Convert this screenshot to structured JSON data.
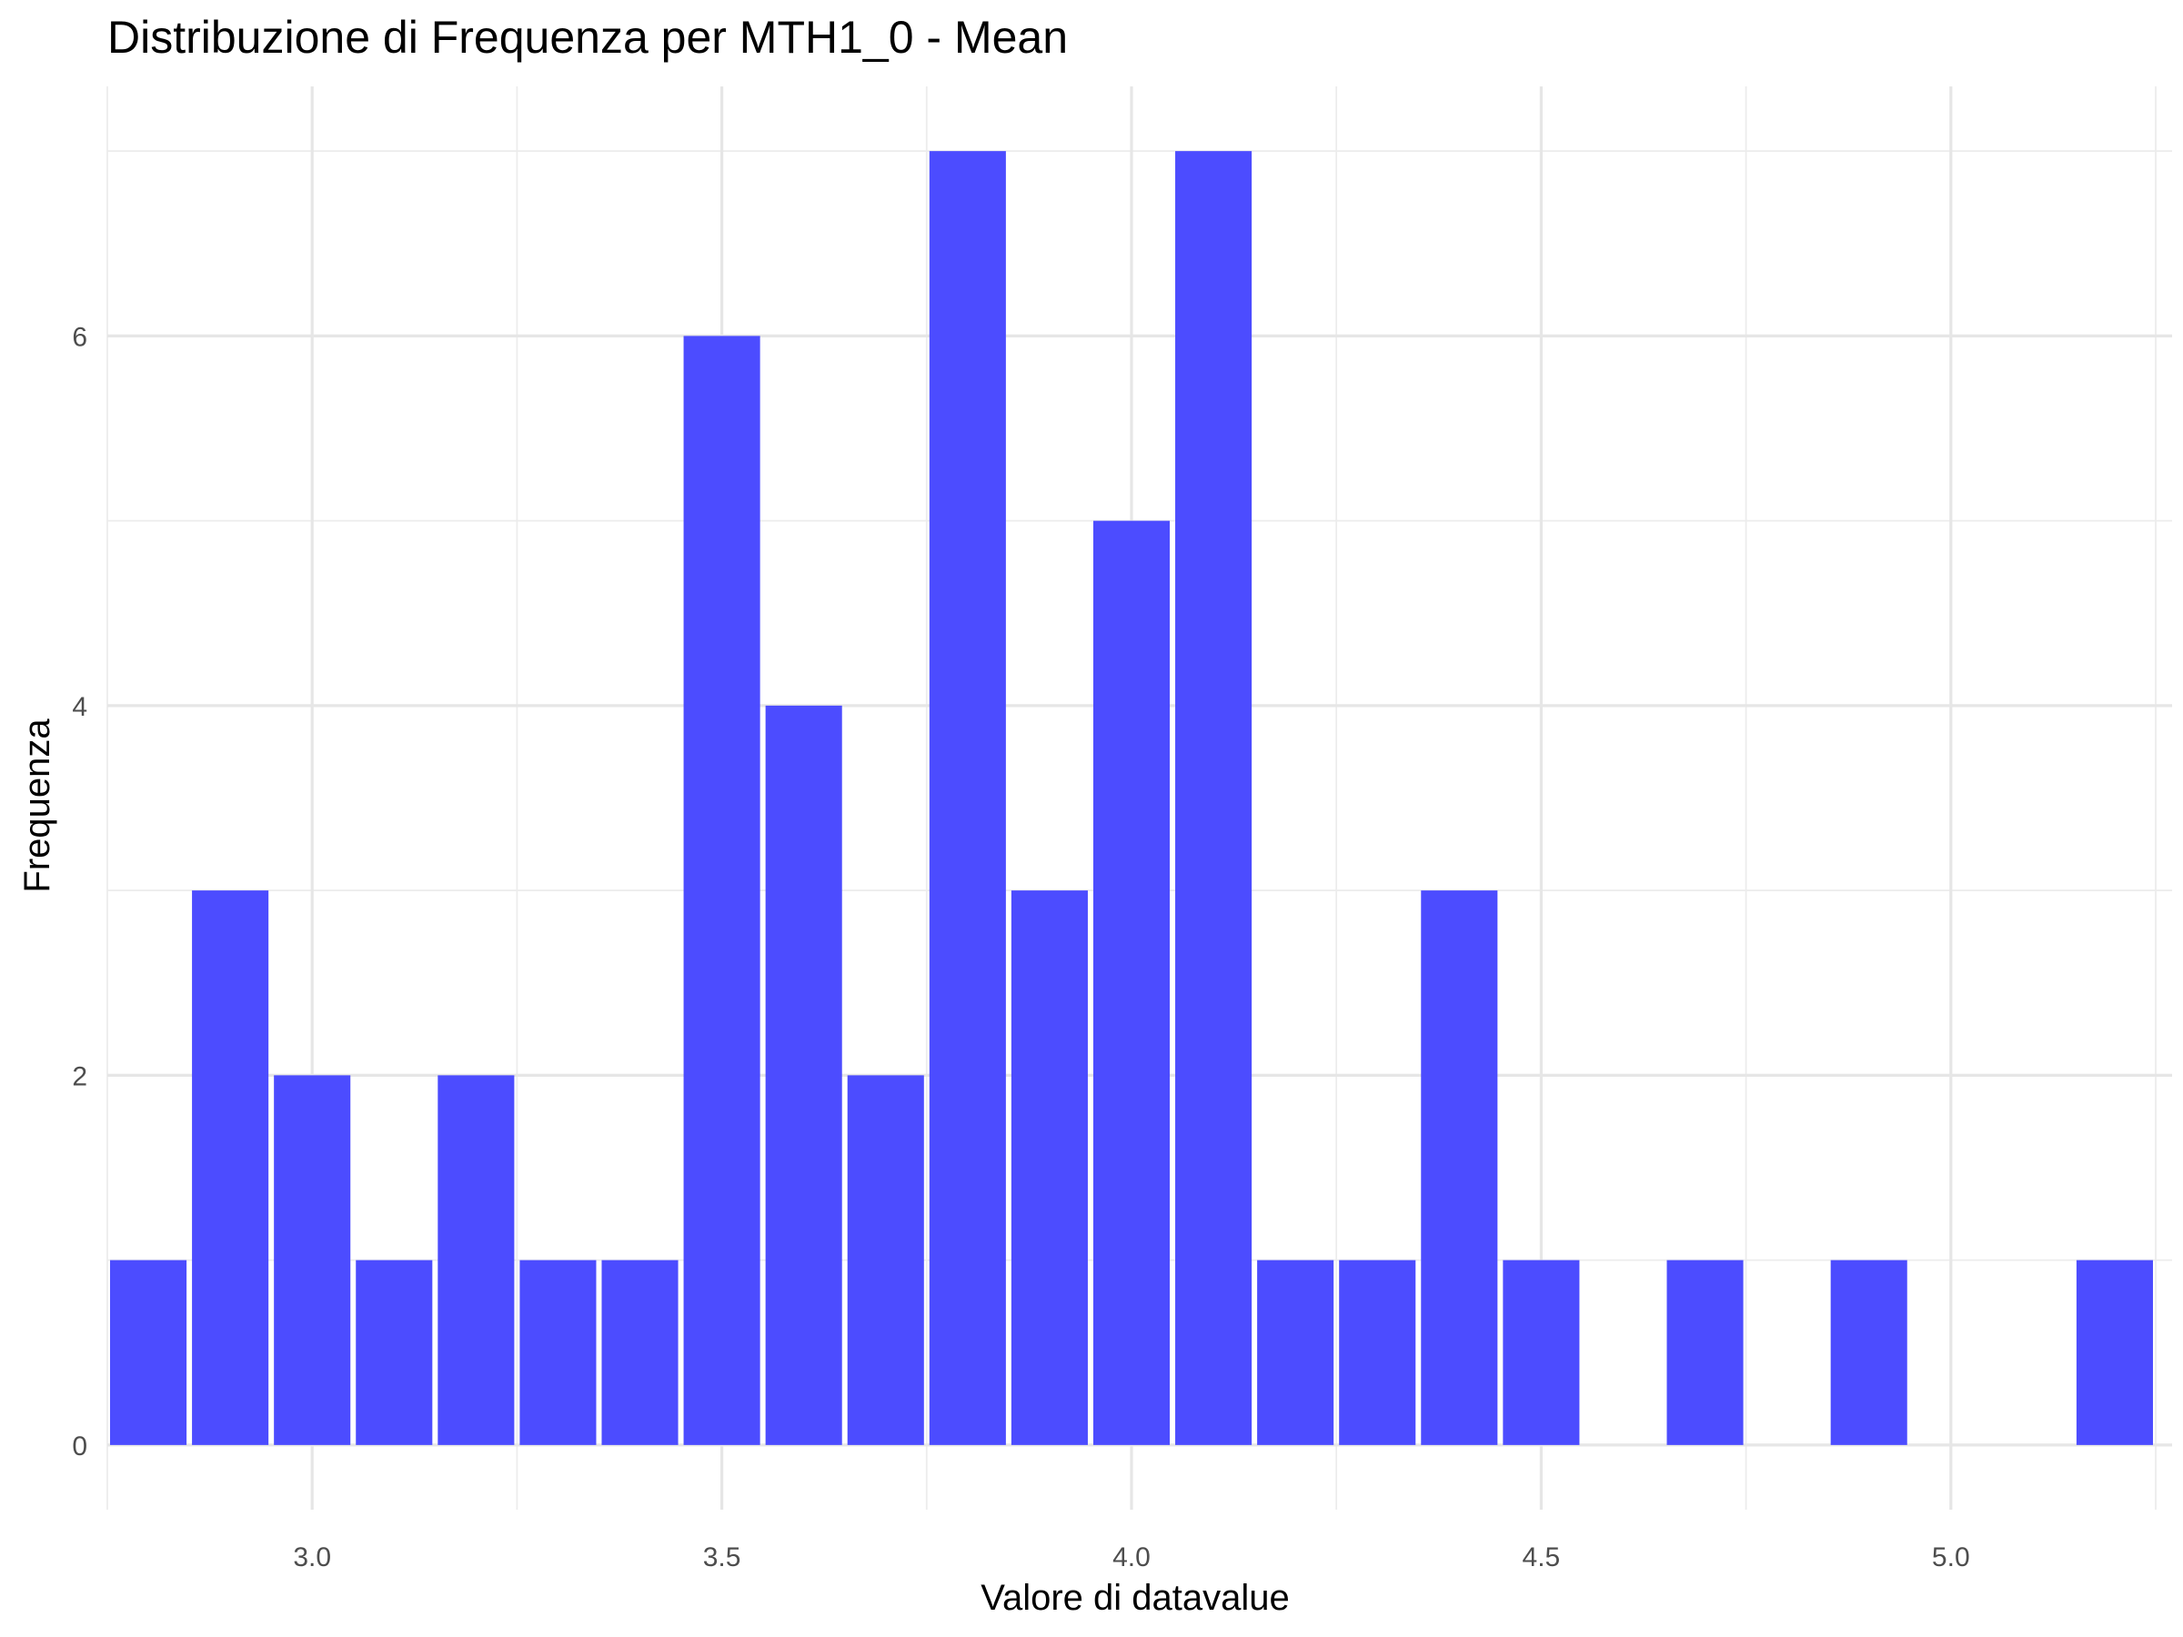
{
  "chart_data": {
    "type": "bar",
    "subtype": "histogram",
    "title": "Distribuzione di Frequenza per MTH1_0 - Mean",
    "xlabel": "Valore di datavalue",
    "ylabel": "Frequenza",
    "bin_width": 0.1,
    "bins": [
      {
        "x": 2.8,
        "count": 1
      },
      {
        "x": 2.9,
        "count": 3
      },
      {
        "x": 3.0,
        "count": 2
      },
      {
        "x": 3.1,
        "count": 1
      },
      {
        "x": 3.2,
        "count": 2
      },
      {
        "x": 3.3,
        "count": 1
      },
      {
        "x": 3.4,
        "count": 1
      },
      {
        "x": 3.5,
        "count": 6
      },
      {
        "x": 3.6,
        "count": 4
      },
      {
        "x": 3.7,
        "count": 2
      },
      {
        "x": 3.8,
        "count": 7
      },
      {
        "x": 3.9,
        "count": 3
      },
      {
        "x": 4.0,
        "count": 5
      },
      {
        "x": 4.1,
        "count": 7
      },
      {
        "x": 4.2,
        "count": 1
      },
      {
        "x": 4.3,
        "count": 1
      },
      {
        "x": 4.4,
        "count": 3
      },
      {
        "x": 4.5,
        "count": 1
      },
      {
        "x": 4.7,
        "count": 1
      },
      {
        "x": 4.9,
        "count": 1
      },
      {
        "x": 5.2,
        "count": 1
      }
    ],
    "xlim": [
      2.75,
      5.27
    ],
    "ylim": [
      -0.35,
      7.35
    ],
    "x_ticks": [
      3.0,
      3.5,
      4.0,
      4.5,
      5.0
    ],
    "x_tick_labels": [
      "3.0",
      "3.5",
      "4.0",
      "4.5",
      "5.0"
    ],
    "x_minor_ticks": [
      2.75,
      3.25,
      3.75,
      4.25,
      4.75,
      5.25
    ],
    "y_ticks": [
      0,
      2,
      4,
      6
    ],
    "y_tick_labels": [
      "0",
      "2",
      "4",
      "6"
    ],
    "y_minor_ticks": [
      1,
      3,
      5,
      7
    ],
    "grid": true,
    "legend": "none",
    "bar_color": "#4c4cff",
    "background": "#ffffff"
  }
}
